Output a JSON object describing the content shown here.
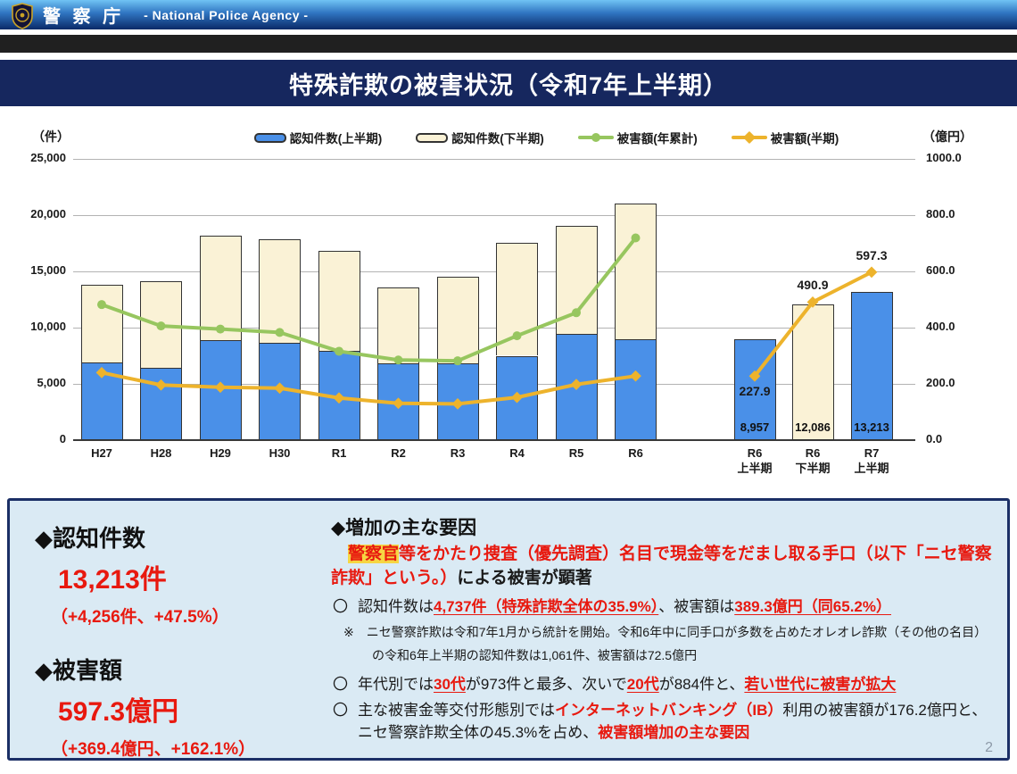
{
  "header": {
    "agency_ja": "警 察 庁",
    "agency_en": "- National Police Agency -"
  },
  "title": "特殊詐欺の被害状況（令和7年上半期）",
  "page_number": "2",
  "chart_data": {
    "type": "combo-stacked-bar-line",
    "left_axis": {
      "label": "（件）",
      "min": 0,
      "max": 25000,
      "ticks": [
        {
          "v": 25000,
          "label": "25,000"
        },
        {
          "v": 20000,
          "label": "20,000"
        },
        {
          "v": 15000,
          "label": "15,000"
        },
        {
          "v": 10000,
          "label": "10,000"
        },
        {
          "v": 5000,
          "label": "5,000"
        },
        {
          "v": 0,
          "label": "0"
        }
      ]
    },
    "right_axis": {
      "label": "（億円）",
      "min": 0,
      "max": 1000,
      "ticks": [
        {
          "v": 1000,
          "label": "1000.0"
        },
        {
          "v": 800,
          "label": "800.0"
        },
        {
          "v": 600,
          "label": "600.0"
        },
        {
          "v": 400,
          "label": "400.0"
        },
        {
          "v": 200,
          "label": "200.0"
        },
        {
          "v": 0,
          "label": "0.0"
        }
      ]
    },
    "legend": [
      {
        "label": "認知件数(上半期)",
        "swatch": "bar-blue"
      },
      {
        "label": "認知件数(下半期)",
        "swatch": "bar-cream"
      },
      {
        "label": "被害額(年累計)",
        "swatch": "line-green"
      },
      {
        "label": "被害額(半期)",
        "swatch": "line-yellow"
      }
    ],
    "colors": {
      "bar_first_half": "#4a90e8",
      "bar_second_half": "#faf2d6",
      "line_cumulative": "#97c65f",
      "line_half": "#edb32c",
      "bar_border": "#333333"
    },
    "main_group": {
      "categories": [
        "H27",
        "H28",
        "H29",
        "H30",
        "R1",
        "R2",
        "R3",
        "R4",
        "R5",
        "R6"
      ],
      "first_half_cases": [
        6900,
        6400,
        8900,
        8650,
        7950,
        6850,
        6800,
        7500,
        9450,
        8957
      ],
      "total_cases": [
        13828,
        14154,
        18212,
        17844,
        16851,
        13550,
        14498,
        17570,
        19038,
        21043
      ],
      "damage_cumulative_oku": [
        482,
        406,
        395,
        383,
        316,
        285,
        282,
        371,
        453,
        719
      ],
      "damage_half_oku": [
        240,
        196,
        188,
        185,
        150,
        131,
        129,
        152,
        198,
        228
      ]
    },
    "isolated_group": {
      "categories": [
        [
          "R6",
          "上半期"
        ],
        [
          "R6",
          "下半期"
        ],
        [
          "R7",
          "上半期"
        ]
      ],
      "bar_values": [
        8957,
        12086,
        13213
      ],
      "bar_value_labels": [
        "8,957",
        "12,086",
        "13,213"
      ],
      "bar_styles": [
        "blue",
        "cream",
        "blue"
      ],
      "line_values": [
        227.9,
        490.9,
        597.3
      ],
      "line_value_labels": [
        "227.9",
        "490.9",
        "597.3"
      ]
    }
  },
  "summary": {
    "cases": {
      "heading": "◆認知件数",
      "value": "13,213件",
      "change": "（+4,256件、+47.5%）"
    },
    "damage": {
      "heading": "◆被害額",
      "value": "597.3億円",
      "change": "（+369.4億円、+162.1%）"
    }
  },
  "factors": {
    "heading": "◆増加の主な要因",
    "lead": [
      {
        "t": "警察官",
        "s": "seg-red seg-bold seg-hl"
      },
      {
        "t": "等をかたり捜査（優先調査）名目で現金等をだまし取る手口（以下「ニセ警察詐欺」という。）",
        "s": "seg-red seg-bold"
      },
      {
        "t": "による被害が顕著",
        "s": "seg-bold"
      }
    ],
    "bullets": [
      {
        "marker": "〇",
        "segments": [
          {
            "t": "認知件数は",
            "s": ""
          },
          {
            "t": "4,737件（特殊詐欺全体の35.9%）",
            "s": "seg-red seg-bold seg-u"
          },
          {
            "t": "、被害額は",
            "s": ""
          },
          {
            "t": "389.3億円（同65.2%）",
            "s": "seg-red seg-bold seg-u"
          }
        ]
      },
      {
        "marker": "〇",
        "segments": [
          {
            "t": "年代別では",
            "s": ""
          },
          {
            "t": "30代",
            "s": "seg-red seg-bold seg-u"
          },
          {
            "t": "が973件と最多、次いで",
            "s": ""
          },
          {
            "t": "20代",
            "s": "seg-red seg-bold seg-u"
          },
          {
            "t": "が884件と、",
            "s": ""
          },
          {
            "t": "若い世代に被害が拡大",
            "s": "seg-red seg-bold seg-u"
          }
        ]
      },
      {
        "marker": "〇",
        "segments": [
          {
            "t": "主な被害金等交付形態別では",
            "s": ""
          },
          {
            "t": "インターネットバンキング（IB）",
            "s": "seg-red seg-bold"
          },
          {
            "t": "利用の被害額が176.2億円と、ニセ警察詐欺全体の45.3%を占め、",
            "s": ""
          },
          {
            "t": "被害額増加の主な要因",
            "s": "seg-red seg-bold"
          }
        ]
      }
    ],
    "note": "※　ニセ警察詐欺は令和7年1月から統計を開始。令和6年中に同手口が多数を占めたオレオレ詐欺（その他の名目）の令和6年上半期の認知件数は1,061件、被害額は72.5億円"
  }
}
